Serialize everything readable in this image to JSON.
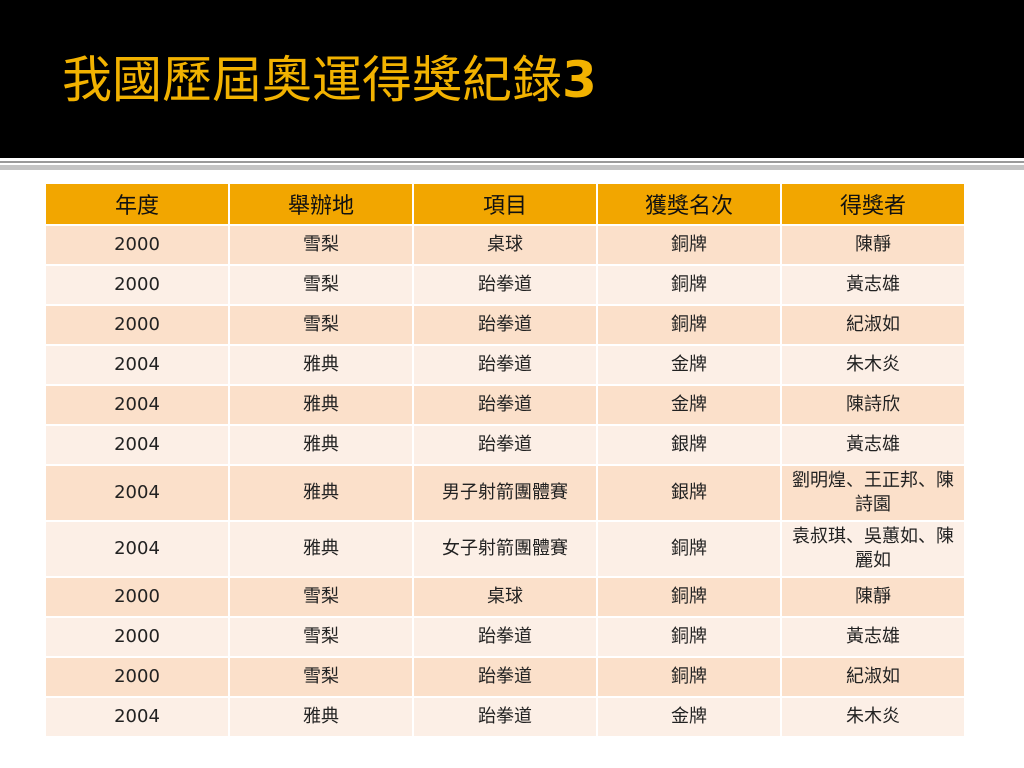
{
  "slide": {
    "title": "我國歷屆奧運得獎紀錄",
    "title_number": "3"
  },
  "colors": {
    "header_bg": "#000000",
    "title": "#f2b200",
    "table_header": "#f2a600",
    "row_odd": "#fbe0ca",
    "row_even": "#fcefe6"
  },
  "table": {
    "headers": [
      "年度",
      "舉辦地",
      "項目",
      "獲獎名次",
      "得獎者"
    ],
    "rows": [
      [
        "2000",
        "雪梨",
        "桌球",
        "銅牌",
        "陳靜"
      ],
      [
        "2000",
        "雪梨",
        "跆拳道",
        "銅牌",
        "黃志雄"
      ],
      [
        "2000",
        "雪梨",
        "跆拳道",
        "銅牌",
        "紀淑如"
      ],
      [
        "2004",
        "雅典",
        "跆拳道",
        "金牌",
        "朱木炎"
      ],
      [
        "2004",
        "雅典",
        "跆拳道",
        "金牌",
        "陳詩欣"
      ],
      [
        "2004",
        "雅典",
        "跆拳道",
        "銀牌",
        "黃志雄"
      ],
      [
        "2004",
        "雅典",
        "男子射箭團體賽",
        "銀牌",
        "劉明煌、王正邦、陳詩園"
      ],
      [
        "2004",
        "雅典",
        "女子射箭團體賽",
        "銅牌",
        "袁叔琪、吳蕙如、陳麗如"
      ],
      [
        "2000",
        "雪梨",
        "桌球",
        "銅牌",
        "陳靜"
      ],
      [
        "2000",
        "雪梨",
        "跆拳道",
        "銅牌",
        "黃志雄"
      ],
      [
        "2000",
        "雪梨",
        "跆拳道",
        "銅牌",
        "紀淑如"
      ],
      [
        "2004",
        "雅典",
        "跆拳道",
        "金牌",
        "朱木炎"
      ]
    ]
  }
}
